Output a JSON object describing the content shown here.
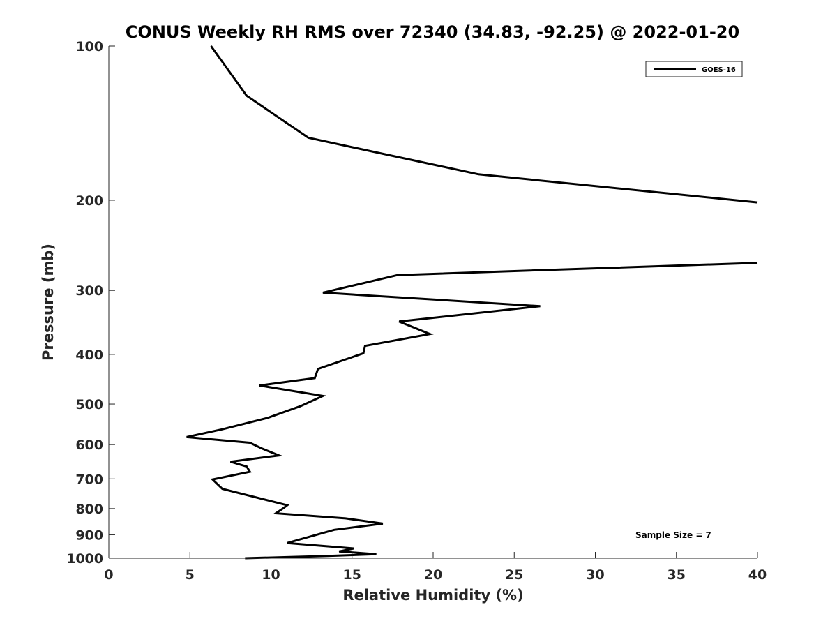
{
  "chart_data": {
    "type": "line",
    "title": "CONUS Weekly RH RMS over 72340 (34.83, -92.25) @ 2022-01-20",
    "xlabel": "Relative Humidity (%)",
    "ylabel": "Pressure (mb)",
    "xlim": [
      0,
      40
    ],
    "ylim": [
      100,
      1000
    ],
    "y_scale": "log",
    "y_reversed": true,
    "grid": false,
    "legend_position": "top-right",
    "xticks": [
      0,
      5,
      10,
      15,
      20,
      25,
      30,
      35,
      40
    ],
    "yticks": [
      100,
      200,
      300,
      400,
      500,
      600,
      700,
      800,
      900,
      1000
    ],
    "annotation": "Sample Size = 7",
    "series": [
      {
        "name": "GOES-16",
        "color": "#000000",
        "segments": [
          [
            [
              6.3,
              100
            ],
            [
              8.5,
              125
            ],
            [
              12.3,
              151
            ],
            [
              22.8,
              178
            ],
            [
              40,
              202
            ]
          ],
          [
            [
              40,
              265
            ],
            [
              17.8,
              280
            ],
            [
              13.2,
              303
            ],
            [
              26.6,
              322
            ],
            [
              17.9,
              345
            ],
            [
              19.8,
              365
            ],
            [
              15.8,
              385
            ],
            [
              15.7,
              398
            ],
            [
              12.9,
              427
            ],
            [
              12.7,
              445
            ],
            [
              9.3,
              460
            ],
            [
              13.2,
              482
            ],
            [
              11.8,
              505
            ],
            [
              9.8,
              532
            ],
            [
              7.0,
              560
            ],
            [
              4.8,
              580
            ],
            [
              8.7,
              595
            ],
            [
              9.4,
              610
            ],
            [
              10.5,
              630
            ],
            [
              7.5,
              648
            ],
            [
              8.5,
              662
            ],
            [
              8.7,
              678
            ],
            [
              6.4,
              702
            ],
            [
              7.0,
              732
            ],
            [
              11.0,
              788
            ],
            [
              10.8,
              797
            ],
            [
              10.3,
              817
            ],
            [
              14.6,
              836
            ],
            [
              16.9,
              856
            ],
            [
              13.9,
              880
            ],
            [
              11.0,
              934
            ],
            [
              15.1,
              957
            ],
            [
              14.2,
              970
            ],
            [
              16.5,
              982
            ],
            [
              13.5,
              990
            ],
            [
              8.4,
              1000
            ]
          ]
        ]
      }
    ]
  }
}
